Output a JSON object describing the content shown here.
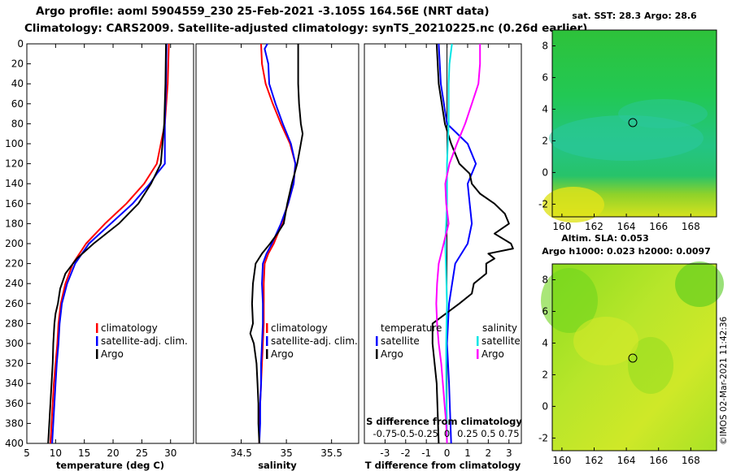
{
  "header": {
    "title_line1": "Argo profile: aoml 5904559_230 25-Feb-2021 -3.105S 164.56E (NRT data)",
    "title_line2": "Climatology: CARS2009. Satellite-adjusted climatology: synTS_20210225.nc (0.26d earlier)"
  },
  "colors": {
    "climatology": "#ff0000",
    "satellite": "#0000ff",
    "argo": "#000000",
    "s_satellite": "#00e5e5",
    "s_argo": "#ff00ff"
  },
  "chart_data": [
    {
      "type": "line",
      "id": "temperature",
      "xlabel": "temperature (deg C)",
      "xlim": [
        5,
        34
      ],
      "ylim": [
        400,
        0
      ],
      "xticks": [
        5,
        10,
        15,
        20,
        25,
        30
      ],
      "yticks": [
        0,
        20,
        40,
        60,
        80,
        100,
        120,
        140,
        160,
        180,
        200,
        220,
        240,
        260,
        280,
        300,
        320,
        340,
        360,
        380,
        400
      ],
      "legend": [
        "climatology",
        "satellite-adj. clim.",
        "Argo"
      ],
      "series": [
        {
          "name": "climatology",
          "color_key": "climatology",
          "depth": [
            0,
            40,
            80,
            120,
            140,
            160,
            180,
            200,
            220,
            240,
            260,
            280,
            300,
            320,
            340,
            360,
            380,
            400
          ],
          "values": [
            29.7,
            29.5,
            29.0,
            27.6,
            25.4,
            22.3,
            18.6,
            15.3,
            13.0,
            11.7,
            10.9,
            10.5,
            10.3,
            10.0,
            9.7,
            9.5,
            9.3,
            9.1
          ]
        },
        {
          "name": "satellite-adj. clim.",
          "color_key": "satellite",
          "depth": [
            0,
            40,
            80,
            120,
            130,
            140,
            160,
            180,
            200,
            220,
            240,
            260,
            280,
            300,
            320,
            340,
            360,
            380,
            400
          ],
          "values": [
            29.3,
            29.2,
            29.0,
            29.0,
            27.6,
            26.4,
            23.4,
            19.6,
            15.8,
            13.4,
            12.0,
            11.1,
            10.7,
            10.5,
            10.2,
            10.0,
            9.8,
            9.6,
            9.4
          ]
        },
        {
          "name": "Argo",
          "color_key": "argo",
          "depth": [
            0,
            40,
            80,
            120,
            140,
            160,
            180,
            200,
            215,
            230,
            245,
            260,
            270,
            280,
            300,
            320,
            340,
            360,
            380,
            400
          ],
          "values": [
            29.2,
            29.1,
            28.9,
            28.3,
            26.6,
            24.4,
            21.0,
            16.6,
            13.7,
            11.7,
            10.8,
            10.4,
            10.0,
            9.8,
            9.6,
            9.5,
            9.3,
            9.1,
            8.9,
            8.7
          ]
        }
      ]
    },
    {
      "type": "line",
      "id": "salinity",
      "xlabel": "salinity",
      "xlim": [
        34.0,
        35.8
      ],
      "ylim": [
        400,
        0
      ],
      "xticks": [
        34.5,
        35,
        35.5
      ],
      "xtick_labels": [
        "34.5",
        "35",
        "35.5"
      ],
      "legend": [
        "climatology",
        "satellite-adj. clim.",
        "Argo"
      ],
      "series": [
        {
          "name": "climatology",
          "color_key": "climatology",
          "depth": [
            0,
            20,
            40,
            60,
            80,
            100,
            120,
            140,
            160,
            180,
            200,
            210,
            220,
            240,
            260,
            280,
            300,
            320,
            340,
            360,
            380,
            400
          ],
          "values": [
            34.72,
            34.73,
            34.77,
            34.85,
            34.94,
            35.04,
            35.1,
            35.08,
            35.02,
            34.95,
            34.86,
            34.8,
            34.76,
            34.75,
            34.75,
            34.75,
            34.74,
            34.73,
            34.72,
            34.71,
            34.7,
            34.7
          ]
        },
        {
          "name": "satellite-adj. clim.",
          "color_key": "satellite",
          "depth": [
            0,
            5,
            20,
            40,
            60,
            80,
            100,
            120,
            140,
            160,
            180,
            200,
            210,
            220,
            240,
            260,
            280,
            300,
            320,
            340,
            360,
            380,
            400
          ],
          "values": [
            34.79,
            34.76,
            34.8,
            34.81,
            34.88,
            34.96,
            35.05,
            35.1,
            35.08,
            35.02,
            34.94,
            34.84,
            34.78,
            34.74,
            34.73,
            34.74,
            34.74,
            34.73,
            34.72,
            34.72,
            34.71,
            34.71,
            34.7
          ]
        },
        {
          "name": "Argo",
          "color_key": "argo",
          "depth": [
            0,
            20,
            40,
            60,
            80,
            90,
            100,
            110,
            120,
            140,
            160,
            170,
            180,
            190,
            200,
            210,
            220,
            240,
            260,
            280,
            290,
            300,
            320,
            340,
            360,
            380,
            400
          ],
          "values": [
            35.13,
            35.13,
            35.13,
            35.14,
            35.16,
            35.18,
            35.16,
            35.14,
            35.12,
            35.06,
            35.01,
            34.99,
            34.97,
            34.9,
            34.82,
            34.73,
            34.66,
            34.63,
            34.62,
            34.63,
            34.6,
            34.64,
            34.67,
            34.68,
            34.69,
            34.69,
            34.7
          ]
        }
      ]
    },
    {
      "type": "line",
      "id": "difference",
      "xlabel": "T difference from climatology",
      "xlabel_top": "S difference from climatology",
      "xlim": [
        -4,
        3.6
      ],
      "ylim": [
        400,
        0
      ],
      "xticks": [
        -3,
        -2,
        -1,
        0,
        1,
        2,
        3
      ],
      "top_xticks": [
        -0.75,
        -0.5,
        -0.25,
        0,
        0.25,
        0.5,
        0.75
      ],
      "top_xtick_labels": [
        "-0.75",
        "-0.5",
        "-0.25",
        "0",
        "0.25",
        "0.5",
        "0.75"
      ],
      "legend_left_title": "temperature",
      "legend_right_title": "salinity",
      "legend": [
        "satellite",
        "Argo",
        "satellite",
        "Argo"
      ],
      "series": [
        {
          "name": "T satellite",
          "color_key": "satellite",
          "depth": [
            0,
            40,
            80,
            100,
            120,
            140,
            160,
            180,
            200,
            220,
            260,
            300,
            340,
            400
          ],
          "values": [
            -0.4,
            -0.3,
            0.0,
            1.0,
            1.4,
            1.0,
            1.1,
            1.2,
            1.0,
            0.4,
            0.1,
            0.0,
            0.1,
            0.2
          ]
        },
        {
          "name": "T Argo",
          "color_key": "argo",
          "depth": [
            0,
            40,
            80,
            100,
            120,
            130,
            140,
            150,
            160,
            170,
            180,
            190,
            200,
            205,
            210,
            215,
            220,
            230,
            240,
            250,
            260,
            280,
            300,
            340,
            400
          ],
          "values": [
            -0.5,
            -0.4,
            -0.1,
            0.2,
            0.6,
            1.1,
            1.2,
            1.6,
            2.3,
            2.8,
            3.0,
            2.3,
            3.1,
            3.2,
            2.0,
            2.3,
            1.9,
            1.9,
            1.3,
            1.2,
            0.6,
            -0.7,
            -0.7,
            -0.5,
            -0.4
          ]
        },
        {
          "name": "S satellite",
          "color_key": "s_satellite",
          "depth": [
            0,
            20,
            40,
            80,
            100,
            120,
            140,
            160,
            200,
            260,
            300,
            340,
            400
          ],
          "values": [
            0.06,
            0.03,
            0.02,
            0.02,
            0.01,
            0.0,
            0.0,
            0.0,
            -0.02,
            0.0,
            -0.01,
            -0.01,
            0.0
          ]
        },
        {
          "name": "S Argo",
          "color_key": "s_argo",
          "depth": [
            0,
            20,
            40,
            60,
            80,
            100,
            120,
            140,
            160,
            180,
            200,
            220,
            240,
            260,
            280,
            300,
            320,
            340,
            360,
            380,
            400
          ],
          "values": [
            0.4,
            0.4,
            0.38,
            0.3,
            0.22,
            0.12,
            0.03,
            -0.02,
            -0.01,
            0.02,
            -0.04,
            -0.1,
            -0.12,
            -0.13,
            -0.12,
            -0.1,
            -0.07,
            -0.05,
            -0.03,
            -0.01,
            0.0
          ]
        }
      ]
    },
    {
      "type": "heatmap",
      "id": "sst_map",
      "title": "sat. SST: 28.3 Argo: 28.6",
      "xticks": [
        160,
        162,
        164,
        166,
        168
      ],
      "yticks": [
        8,
        6,
        4,
        2,
        0,
        -2
      ],
      "xlim": [
        159.4,
        169.6
      ],
      "ylim": [
        -2.8,
        9.0
      ],
      "marker": [
        164.56,
        3.1
      ]
    },
    {
      "type": "heatmap",
      "id": "sla_map",
      "title": "Altim. SLA: 0.053",
      "subtitle": "Argo h1000: 0.023 h2000: 0.0097",
      "xticks": [
        160,
        162,
        164,
        166,
        168
      ],
      "yticks": [
        8,
        6,
        4,
        2,
        0,
        -2
      ],
      "xlim": [
        159.4,
        169.6
      ],
      "ylim": [
        -2.8,
        9.0
      ],
      "marker": [
        164.56,
        3.1
      ]
    }
  ],
  "footer": {
    "credit": "©IMOS 02-Mar-2021 11:42:36"
  }
}
